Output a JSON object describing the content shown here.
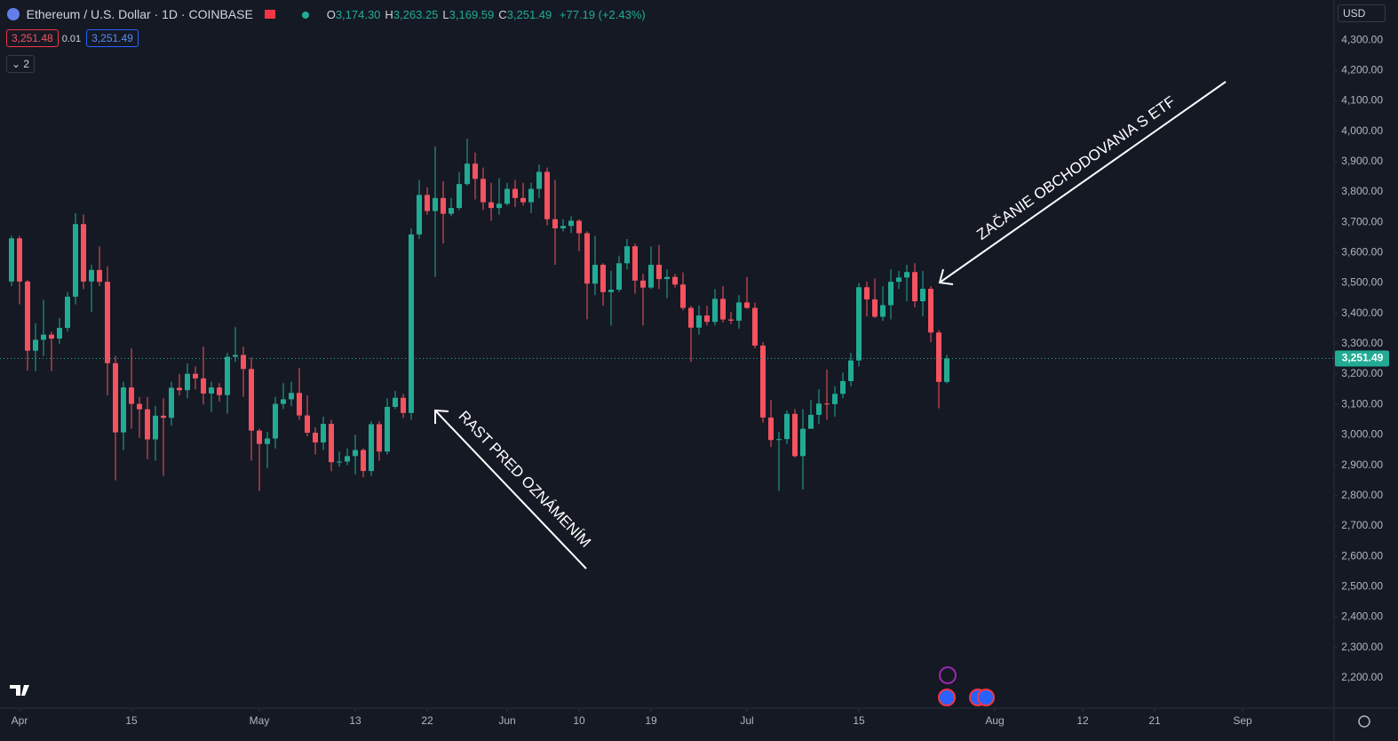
{
  "toolbar": {
    "title": "Ethereum / U.S. Dollar · 1D · COINBASE",
    "ohlc": [
      {
        "label": "O",
        "value": "3,174.30"
      },
      {
        "label": "H",
        "value": "3,263.25"
      },
      {
        "label": "L",
        "value": "3,169.59"
      },
      {
        "label": "C",
        "value": "3,251.49"
      }
    ],
    "change": "+77.19 (+2.43%)",
    "bid": "3,251.48",
    "spread": "0.01",
    "ask": "3,251.49",
    "indicators": "2",
    "currency": "USD"
  },
  "chart_data": {
    "type": "candlestick",
    "up_color": "#22ab94",
    "down_color": "#f7525f",
    "grid": false,
    "x": [
      "03-31",
      "04-01",
      "04-02",
      "04-03",
      "04-04",
      "04-05",
      "04-06",
      "04-07",
      "04-08",
      "04-09",
      "04-10",
      "04-11",
      "04-12",
      "04-13",
      "04-14",
      "04-15",
      "04-16",
      "04-17",
      "04-18",
      "04-19",
      "04-20",
      "04-21",
      "04-22",
      "04-23",
      "04-24",
      "04-25",
      "04-26",
      "04-27",
      "04-28",
      "04-29",
      "04-30",
      "05-01",
      "05-02",
      "05-03",
      "05-04",
      "05-05",
      "05-06",
      "05-07",
      "05-08",
      "05-09",
      "05-10",
      "05-11",
      "05-12",
      "05-13",
      "05-14",
      "05-15",
      "05-16",
      "05-17",
      "05-18",
      "05-19",
      "05-20",
      "05-21",
      "05-22",
      "05-23",
      "05-24",
      "05-25",
      "05-26",
      "05-27",
      "05-28",
      "05-29",
      "05-30",
      "05-31",
      "06-01",
      "06-02",
      "06-03",
      "06-04",
      "06-05",
      "06-06",
      "06-07",
      "06-08",
      "06-09",
      "06-10",
      "06-11",
      "06-12",
      "06-13",
      "06-14",
      "06-15",
      "06-16",
      "06-17",
      "06-18",
      "06-19",
      "06-20",
      "06-21",
      "06-22",
      "06-23",
      "06-24",
      "06-25",
      "06-26",
      "06-27",
      "06-28",
      "06-29",
      "06-30",
      "07-01",
      "07-02",
      "07-03",
      "07-04",
      "07-05",
      "07-06",
      "07-07",
      "07-08",
      "07-09",
      "07-10",
      "07-11",
      "07-12",
      "07-13",
      "07-14",
      "07-15",
      "07-16",
      "07-17",
      "07-18",
      "07-19",
      "07-20",
      "07-21",
      "07-22",
      "07-23",
      "07-24",
      "07-25",
      "07-26"
    ],
    "open": [
      3505,
      3647,
      3505,
      3277,
      3313,
      3330,
      3317,
      3352,
      3455,
      3694,
      3505,
      3543,
      3504,
      3236,
      3008,
      3156,
      3102,
      3084,
      2985,
      3063,
      3056,
      3155,
      3147,
      3201,
      3186,
      3136,
      3156,
      3131,
      3257,
      3263,
      3217,
      3014,
      2970,
      2988,
      3102,
      3117,
      3138,
      3064,
      3007,
      2975,
      3036,
      2910,
      2912,
      2930,
      2950,
      2881,
      3035,
      2945,
      3092,
      3122,
      3072,
      3660,
      3790,
      3737,
      3780,
      3728,
      3747,
      3826,
      3893,
      3843,
      3766,
      3747,
      3761,
      3810,
      3780,
      3766,
      3810,
      3866,
      3710,
      3680,
      3688,
      3705,
      3664,
      3498,
      3560,
      3470,
      3478,
      3565,
      3621,
      3508,
      3485,
      3560,
      3513,
      3520,
      3495,
      3418,
      3353,
      3393,
      3372,
      3448,
      3380,
      3376,
      3436,
      3418,
      3294,
      3057,
      2983,
      2986,
      3069,
      2930,
      3020,
      3066,
      3103,
      3101,
      3135,
      3177,
      3245,
      3486,
      3446,
      3389,
      3427,
      3504,
      3518,
      3536,
      3440,
      3481,
      3337,
      3174.3
    ],
    "high": [
      3655,
      3655,
      3510,
      3368,
      3445,
      3340,
      3385,
      3470,
      3730,
      3725,
      3560,
      3620,
      3555,
      3260,
      3175,
      3285,
      3125,
      3125,
      3095,
      3120,
      3175,
      3200,
      3235,
      3225,
      3290,
      3175,
      3170,
      3270,
      3355,
      3290,
      3255,
      3020,
      3010,
      3125,
      3170,
      3175,
      3220,
      3130,
      3025,
      3060,
      3050,
      2945,
      2955,
      3000,
      2955,
      3045,
      3045,
      3120,
      3145,
      3135,
      3680,
      3840,
      3815,
      3950,
      3835,
      3780,
      3865,
      3975,
      3930,
      3880,
      3830,
      3845,
      3830,
      3840,
      3830,
      3830,
      3890,
      3880,
      3840,
      3710,
      3720,
      3710,
      3670,
      3655,
      3565,
      3540,
      3590,
      3645,
      3630,
      3530,
      3620,
      3625,
      3545,
      3530,
      3535,
      3425,
      3425,
      3425,
      3480,
      3490,
      3405,
      3460,
      3520,
      3435,
      3305,
      3115,
      3010,
      3080,
      3085,
      3085,
      3115,
      3150,
      3215,
      3160,
      3205,
      3270,
      3500,
      3505,
      3515,
      3490,
      3545,
      3540,
      3560,
      3565,
      3540,
      3490,
      3345,
      3263.25
    ],
    "low": [
      3490,
      3430,
      3212,
      3210,
      3260,
      3210,
      3300,
      3340,
      3430,
      3480,
      3405,
      3490,
      3130,
      2850,
      2950,
      3020,
      2990,
      2920,
      2915,
      2865,
      3030,
      3130,
      3120,
      3150,
      3100,
      3075,
      3110,
      3070,
      3240,
      3125,
      2915,
      2815,
      2890,
      2955,
      3085,
      3095,
      3050,
      2995,
      2935,
      2950,
      2880,
      2895,
      2900,
      2870,
      2860,
      2865,
      2915,
      2935,
      3085,
      3055,
      3050,
      3645,
      3725,
      3520,
      3630,
      3720,
      3740,
      3820,
      3775,
      3740,
      3705,
      3725,
      3755,
      3750,
      3755,
      3730,
      3780,
      3690,
      3560,
      3670,
      3665,
      3605,
      3380,
      3460,
      3425,
      3360,
      3470,
      3545,
      3465,
      3360,
      3480,
      3480,
      3450,
      3485,
      3410,
      3240,
      3330,
      3360,
      3360,
      3370,
      3365,
      3350,
      3415,
      3285,
      3040,
      2960,
      2815,
      2970,
      2925,
      2820,
      3030,
      3035,
      3050,
      3060,
      3120,
      3160,
      3225,
      3390,
      3385,
      3375,
      3380,
      3480,
      3440,
      3420,
      3390,
      3305,
      3087,
      3169.59
    ],
    "close": [
      3647,
      3505,
      3277,
      3313,
      3330,
      3317,
      3352,
      3455,
      3694,
      3505,
      3543,
      3504,
      3236,
      3008,
      3156,
      3102,
      3084,
      2985,
      3063,
      3056,
      3155,
      3147,
      3201,
      3186,
      3136,
      3156,
      3131,
      3257,
      3263,
      3217,
      3014,
      2970,
      2988,
      3102,
      3117,
      3138,
      3064,
      3007,
      2975,
      3036,
      2910,
      2912,
      2930,
      2950,
      2881,
      3035,
      2945,
      3092,
      3122,
      3072,
      3660,
      3790,
      3737,
      3780,
      3728,
      3747,
      3826,
      3893,
      3843,
      3766,
      3747,
      3761,
      3810,
      3780,
      3766,
      3810,
      3866,
      3710,
      3680,
      3688,
      3705,
      3664,
      3498,
      3560,
      3470,
      3478,
      3565,
      3621,
      3508,
      3485,
      3560,
      3513,
      3520,
      3495,
      3418,
      3353,
      3393,
      3372,
      3448,
      3380,
      3376,
      3436,
      3418,
      3294,
      3057,
      2983,
      2986,
      3069,
      2930,
      3020,
      3066,
      3103,
      3101,
      3135,
      3177,
      3245,
      3486,
      3446,
      3389,
      3427,
      3504,
      3518,
      3536,
      3440,
      3481,
      3337,
      3174.3,
      3251.49
    ],
    "ylim": [
      2100,
      4432
    ],
    "yticks": [
      {
        "value": 4300,
        "label": "4,300.00"
      },
      {
        "value": 4200,
        "label": "4,200.00"
      },
      {
        "value": 4100,
        "label": "4,100.00"
      },
      {
        "value": 4000,
        "label": "4,000.00"
      },
      {
        "value": 3900,
        "label": "3,900.00"
      },
      {
        "value": 3800,
        "label": "3,800.00"
      },
      {
        "value": 3700,
        "label": "3,700.00"
      },
      {
        "value": 3600,
        "label": "3,600.00"
      },
      {
        "value": 3500,
        "label": "3,500.00"
      },
      {
        "value": 3400,
        "label": "3,400.00"
      },
      {
        "value": 3300,
        "label": "3,300.00"
      },
      {
        "value": 3200,
        "label": "3,200.00"
      },
      {
        "value": 3100,
        "label": "3,100.00"
      },
      {
        "value": 3000,
        "label": "3,000.00"
      },
      {
        "value": 2900,
        "label": "2,900.00"
      },
      {
        "value": 2800,
        "label": "2,800.00"
      },
      {
        "value": 2700,
        "label": "2,700.00"
      },
      {
        "value": 2600,
        "label": "2,600.00"
      },
      {
        "value": 2500,
        "label": "2,500.00"
      },
      {
        "value": 2400,
        "label": "2,400.00"
      },
      {
        "value": 2300,
        "label": "2,300.00"
      },
      {
        "value": 2200,
        "label": "2,200.00"
      }
    ],
    "xticks": [
      {
        "value": "04-01",
        "label": "Apr"
      },
      {
        "value": "04-15",
        "label": "15"
      },
      {
        "value": "05-01",
        "label": "May"
      },
      {
        "value": "05-13",
        "label": "13"
      },
      {
        "value": "05-22",
        "label": "22"
      },
      {
        "value": "06-01",
        "label": "Jun"
      },
      {
        "value": "06-10",
        "label": "10"
      },
      {
        "value": "06-19",
        "label": "19"
      },
      {
        "value": "07-01",
        "label": "Jul"
      },
      {
        "value": "07-15",
        "label": "15"
      },
      {
        "value": "08-01",
        "label": "Aug"
      },
      {
        "value": "08-12",
        "label": "12"
      },
      {
        "value": "08-21",
        "label": "21"
      },
      {
        "value": "09-01",
        "label": "Sep"
      }
    ],
    "last_price": {
      "value": 3251.49,
      "label": "3,251.49"
    },
    "annotations": [
      "ZAČANIE OBCHODOVANIA S ETF",
      "RAST PRED OZNÁMENÍM"
    ]
  }
}
